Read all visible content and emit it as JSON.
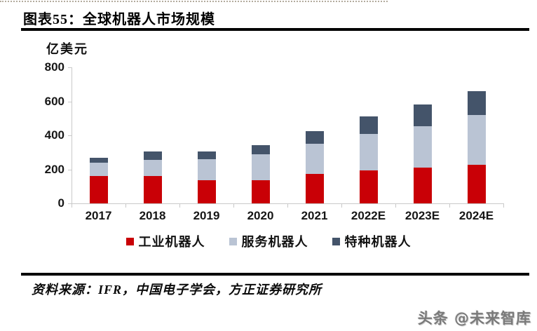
{
  "page": {
    "title": "图表55：全球机器人市场规模",
    "source_line": "资料来源：IFR，中国电子学会，方正证券研究所",
    "watermark": "头条 @未来智库"
  },
  "chart_data": {
    "type": "bar",
    "stacked": true,
    "title": "全球机器人市场规模",
    "unit_label": "亿美元",
    "categories": [
      "2017",
      "2018",
      "2019",
      "2020",
      "2021",
      "2022E",
      "2023E",
      "2024E"
    ],
    "series": [
      {
        "name": "工业机器人",
        "color": "#c90006",
        "values": [
          160,
          160,
          137,
          135,
          172,
          192,
          210,
          225
        ]
      },
      {
        "name": "服务机器人",
        "color": "#bac4d4",
        "values": [
          78,
          95,
          121,
          155,
          177,
          218,
          245,
          295
        ]
      },
      {
        "name": "特种机器人",
        "color": "#44546a",
        "values": [
          30,
          50,
          47,
          52,
          77,
          100,
          125,
          140
        ]
      }
    ],
    "totals": [
      268,
      305,
      305,
      342,
      426,
      510,
      580,
      660
    ],
    "ylabel": "亿美元",
    "xlabel": "",
    "ylim": [
      0,
      800
    ],
    "yticks": [
      0,
      200,
      400,
      600,
      800
    ],
    "grid": false,
    "legend_position": "bottom",
    "axis_color": "#c9c9c9"
  }
}
